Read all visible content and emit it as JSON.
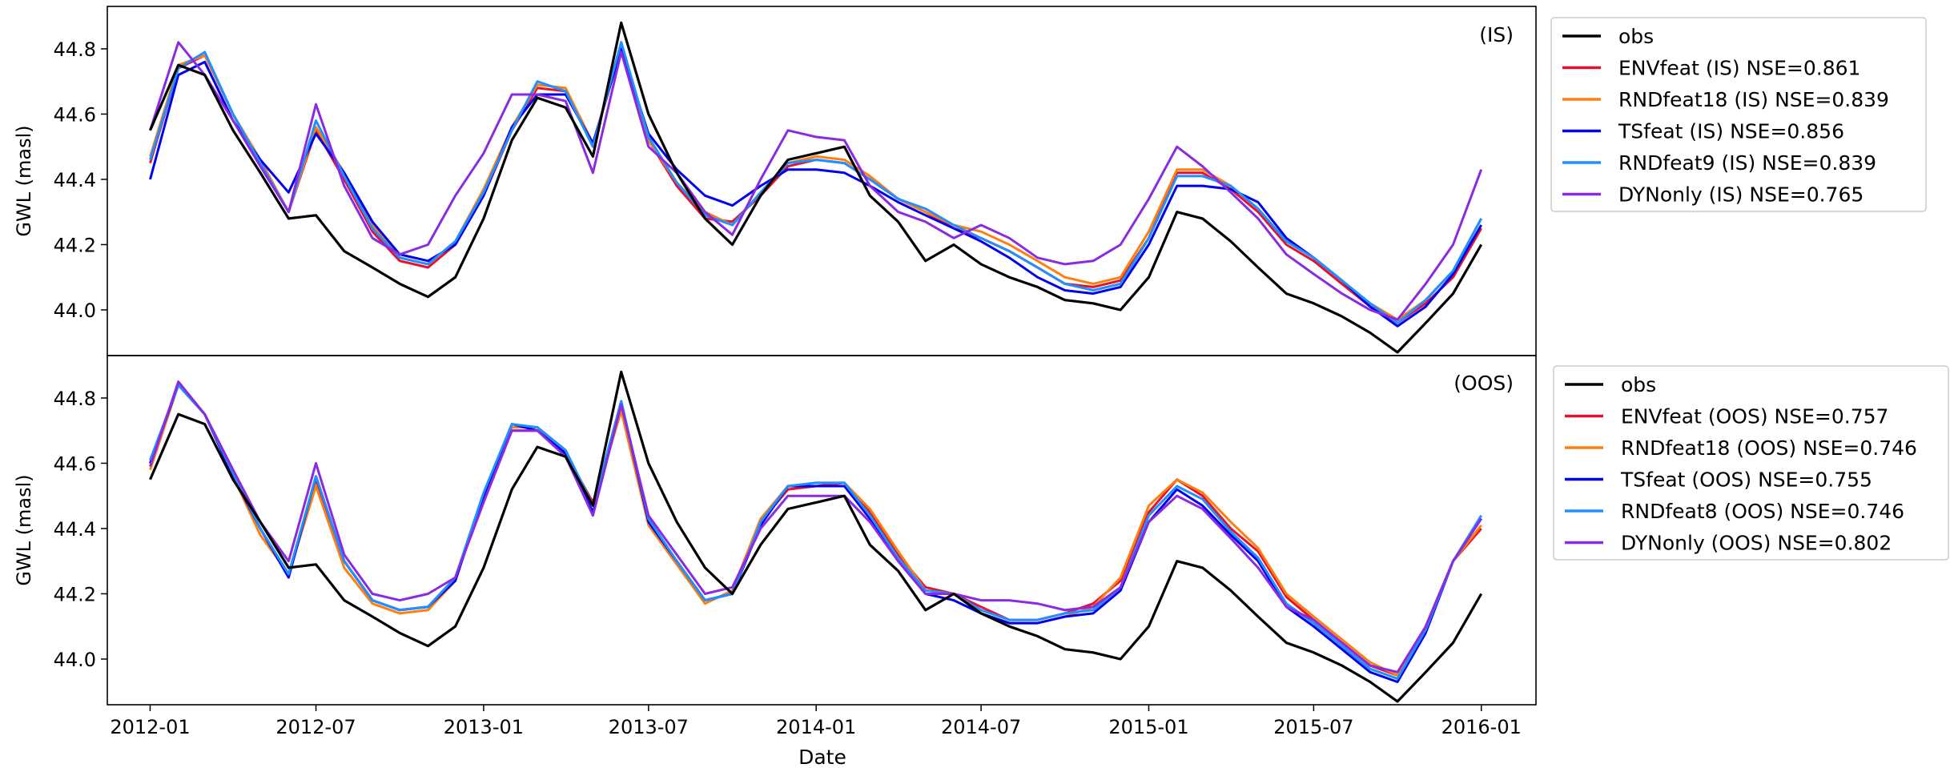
{
  "colors": {
    "obs": "#000000",
    "env": "#e8112d",
    "rnd": "#ff7f0e",
    "ts": "#0000ee",
    "rnd2": "#1e90ff",
    "dyn": "#8a2be2"
  },
  "figure": {
    "xlabel": "Date",
    "ylabel": "GWL (masl)",
    "x_ticks": [
      "2012-01",
      "2012-07",
      "2013-01",
      "2013-07",
      "2014-01",
      "2014-07",
      "2015-01",
      "2015-07",
      "2016-01"
    ],
    "y_ticks": [
      "44.0",
      "44.2",
      "44.4",
      "44.6",
      "44.8"
    ],
    "xlim": [
      "2011-11-15",
      "2016-03-01"
    ],
    "ylim": [
      43.86,
      44.93
    ]
  },
  "chart_data": [
    {
      "type": "line",
      "panel_label": "(IS)",
      "xlabel": "",
      "ylabel": "GWL (masl)",
      "legend_position": "outside-right",
      "grid": false,
      "x": [
        "2012-01",
        "2012-02",
        "2012-03",
        "2012-04",
        "2012-05",
        "2012-06",
        "2012-07",
        "2012-08",
        "2012-09",
        "2012-10",
        "2012-11",
        "2012-12",
        "2013-01",
        "2013-02",
        "2013-03",
        "2013-04",
        "2013-05",
        "2013-06",
        "2013-07",
        "2013-08",
        "2013-09",
        "2013-10",
        "2013-11",
        "2013-12",
        "2014-01",
        "2014-02",
        "2014-03",
        "2014-04",
        "2014-05",
        "2014-06",
        "2014-07",
        "2014-08",
        "2014-09",
        "2014-10",
        "2014-11",
        "2014-12",
        "2015-01",
        "2015-02",
        "2015-03",
        "2015-04",
        "2015-05",
        "2015-06",
        "2015-07",
        "2015-08",
        "2015-09",
        "2015-10",
        "2015-11",
        "2015-12",
        "2016-01"
      ],
      "series": [
        {
          "name": "obs",
          "legend": "obs",
          "color_key": "obs",
          "values": [
            44.55,
            44.75,
            44.72,
            44.55,
            44.42,
            44.28,
            44.29,
            44.18,
            44.13,
            44.08,
            44.04,
            44.1,
            44.28,
            44.52,
            44.65,
            44.62,
            44.47,
            44.88,
            44.6,
            44.42,
            44.28,
            44.2,
            44.35,
            44.46,
            44.48,
            44.5,
            44.35,
            44.27,
            44.15,
            44.2,
            44.14,
            44.1,
            44.07,
            44.03,
            44.02,
            44.0,
            44.1,
            44.3,
            44.28,
            44.21,
            44.13,
            44.05,
            44.02,
            43.98,
            43.93,
            43.87,
            43.96,
            44.05,
            44.2
          ]
        },
        {
          "name": "ENVfeat (IS)",
          "legend": "ENVfeat (IS) NSE=0.861",
          "color_key": "env",
          "values": [
            44.45,
            44.74,
            44.78,
            44.6,
            44.45,
            44.3,
            44.55,
            44.4,
            44.24,
            44.15,
            44.13,
            44.2,
            44.35,
            44.55,
            44.68,
            44.67,
            44.5,
            44.82,
            44.52,
            44.38,
            44.28,
            44.27,
            44.35,
            44.44,
            44.46,
            44.45,
            44.4,
            44.34,
            44.3,
            44.25,
            44.22,
            44.18,
            44.13,
            44.08,
            44.07,
            44.09,
            44.22,
            44.42,
            44.42,
            44.37,
            44.3,
            44.2,
            44.15,
            44.08,
            44.01,
            43.96,
            44.02,
            44.1,
            44.25
          ]
        },
        {
          "name": "RNDfeat18 (IS)",
          "legend": "RNDfeat18 (IS) NSE=0.839",
          "color_key": "rnd",
          "values": [
            44.47,
            44.75,
            44.78,
            44.6,
            44.46,
            44.3,
            44.56,
            44.42,
            44.26,
            44.16,
            44.14,
            44.21,
            44.37,
            44.56,
            44.69,
            44.68,
            44.51,
            44.8,
            44.52,
            44.39,
            44.3,
            44.26,
            44.36,
            44.45,
            44.47,
            44.46,
            44.41,
            44.34,
            44.3,
            44.26,
            44.24,
            44.2,
            44.15,
            44.1,
            44.08,
            44.1,
            44.24,
            44.43,
            44.43,
            44.38,
            44.31,
            44.21,
            44.16,
            44.09,
            44.02,
            43.97,
            44.03,
            44.12,
            44.28
          ]
        },
        {
          "name": "TSfeat (IS)",
          "legend": "TSfeat (IS)   NSE=0.856",
          "color_key": "ts",
          "values": [
            44.4,
            44.72,
            44.76,
            44.58,
            44.46,
            44.36,
            44.54,
            44.42,
            44.27,
            44.17,
            44.15,
            44.2,
            44.35,
            44.56,
            44.66,
            44.66,
            44.51,
            44.8,
            44.54,
            44.43,
            44.35,
            44.32,
            44.38,
            44.43,
            44.43,
            44.42,
            44.38,
            44.33,
            44.29,
            44.25,
            44.21,
            44.16,
            44.1,
            44.06,
            44.05,
            44.07,
            44.2,
            44.38,
            44.38,
            44.37,
            44.33,
            44.22,
            44.16,
            44.09,
            44.01,
            43.95,
            44.01,
            44.11,
            44.26
          ]
        },
        {
          "name": "RNDfeat9 (IS)",
          "legend": "RNDfeat9 (IS) NSE=0.839",
          "color_key": "rnd2",
          "values": [
            44.46,
            44.74,
            44.79,
            44.6,
            44.45,
            44.3,
            44.58,
            44.41,
            44.25,
            44.16,
            44.14,
            44.21,
            44.36,
            44.55,
            44.7,
            44.67,
            44.5,
            44.82,
            44.53,
            44.39,
            44.29,
            44.26,
            44.36,
            44.45,
            44.46,
            44.45,
            44.4,
            44.34,
            44.31,
            44.26,
            44.22,
            44.18,
            44.13,
            44.08,
            44.06,
            44.08,
            44.22,
            44.41,
            44.41,
            44.38,
            44.31,
            44.21,
            44.16,
            44.09,
            44.02,
            43.96,
            44.03,
            44.12,
            44.28
          ]
        },
        {
          "name": "DYNonly (IS)",
          "legend": "DYNonly (IS) NSE=0.765",
          "color_key": "dyn",
          "values": [
            44.55,
            44.82,
            44.72,
            44.58,
            44.44,
            44.3,
            44.63,
            44.38,
            44.22,
            44.17,
            44.2,
            44.35,
            44.48,
            44.66,
            44.66,
            44.64,
            44.42,
            44.79,
            44.5,
            44.42,
            44.3,
            44.23,
            44.4,
            44.55,
            44.53,
            44.52,
            44.38,
            44.3,
            44.27,
            44.22,
            44.26,
            44.22,
            44.16,
            44.14,
            44.15,
            44.2,
            44.34,
            44.5,
            44.44,
            44.36,
            44.28,
            44.17,
            44.11,
            44.05,
            44.0,
            43.97,
            44.08,
            44.2,
            44.43
          ]
        }
      ]
    },
    {
      "type": "line",
      "panel_label": "(OOS)",
      "xlabel": "Date",
      "ylabel": "GWL (masl)",
      "legend_position": "outside-right",
      "grid": false,
      "x": [
        "2012-01",
        "2012-02",
        "2012-03",
        "2012-04",
        "2012-05",
        "2012-06",
        "2012-07",
        "2012-08",
        "2012-09",
        "2012-10",
        "2012-11",
        "2012-12",
        "2013-01",
        "2013-02",
        "2013-03",
        "2013-04",
        "2013-05",
        "2013-06",
        "2013-07",
        "2013-08",
        "2013-09",
        "2013-10",
        "2013-11",
        "2013-12",
        "2014-01",
        "2014-02",
        "2014-03",
        "2014-04",
        "2014-05",
        "2014-06",
        "2014-07",
        "2014-08",
        "2014-09",
        "2014-10",
        "2014-11",
        "2014-12",
        "2015-01",
        "2015-02",
        "2015-03",
        "2015-04",
        "2015-05",
        "2015-06",
        "2015-07",
        "2015-08",
        "2015-09",
        "2015-10",
        "2015-11",
        "2015-12",
        "2016-01"
      ],
      "series": [
        {
          "name": "obs",
          "legend": "obs",
          "color_key": "obs",
          "values": [
            44.55,
            44.75,
            44.72,
            44.55,
            44.42,
            44.28,
            44.29,
            44.18,
            44.13,
            44.08,
            44.04,
            44.1,
            44.28,
            44.52,
            44.65,
            44.62,
            44.47,
            44.88,
            44.6,
            44.42,
            44.28,
            44.2,
            44.35,
            44.46,
            44.48,
            44.5,
            44.35,
            44.27,
            44.15,
            44.2,
            44.14,
            44.1,
            44.07,
            44.03,
            44.02,
            44.0,
            44.1,
            44.3,
            44.28,
            44.21,
            44.13,
            44.05,
            44.02,
            43.98,
            43.93,
            43.87,
            43.96,
            44.05,
            44.2
          ]
        },
        {
          "name": "ENVfeat (OOS)",
          "legend": "ENVfeat (OOS) NSE=0.757",
          "color_key": "env",
          "values": [
            44.6,
            44.84,
            44.75,
            44.57,
            44.4,
            44.26,
            44.55,
            44.3,
            44.18,
            44.15,
            44.16,
            44.25,
            44.5,
            44.7,
            44.7,
            44.63,
            44.48,
            44.77,
            44.42,
            44.3,
            44.18,
            44.2,
            44.42,
            44.52,
            44.53,
            44.54,
            44.45,
            44.32,
            44.22,
            44.2,
            44.16,
            44.12,
            44.12,
            44.14,
            44.17,
            44.24,
            44.45,
            44.55,
            44.5,
            44.4,
            44.33,
            44.19,
            44.12,
            44.05,
            43.98,
            43.95,
            44.1,
            44.3,
            44.4
          ]
        },
        {
          "name": "RNDfeat18 (OOS)",
          "legend": "RNDfeat18 (OOS) NSE=0.746",
          "color_key": "rnd",
          "values": [
            44.58,
            44.84,
            44.75,
            44.56,
            44.38,
            44.26,
            44.53,
            44.28,
            44.17,
            44.14,
            44.15,
            44.24,
            44.5,
            44.71,
            44.71,
            44.64,
            44.47,
            44.76,
            44.41,
            44.29,
            44.17,
            44.21,
            44.43,
            44.53,
            44.54,
            44.54,
            44.46,
            44.33,
            44.21,
            44.2,
            44.14,
            44.11,
            44.11,
            44.13,
            44.16,
            44.25,
            44.47,
            44.55,
            44.51,
            44.42,
            44.34,
            44.2,
            44.13,
            44.06,
            43.99,
            43.95,
            44.1,
            44.3,
            44.41
          ]
        },
        {
          "name": "TSfeat (OOS)",
          "legend": "TSfeat (OOS)   NSE=0.755",
          "color_key": "ts",
          "values": [
            44.6,
            44.84,
            44.75,
            44.56,
            44.4,
            44.25,
            44.56,
            44.3,
            44.18,
            44.15,
            44.16,
            44.24,
            44.5,
            44.72,
            44.7,
            44.63,
            44.45,
            44.79,
            44.42,
            44.3,
            44.18,
            44.2,
            44.41,
            44.53,
            44.53,
            44.53,
            44.43,
            44.3,
            44.2,
            44.18,
            44.14,
            44.11,
            44.11,
            44.13,
            44.14,
            44.21,
            44.42,
            44.52,
            44.47,
            44.38,
            44.3,
            44.16,
            44.1,
            44.03,
            43.96,
            43.93,
            44.08,
            44.3,
            44.43
          ]
        },
        {
          "name": "RNDfeat8 (OOS)",
          "legend": "RNDfeat8 (OOS) NSE=0.746",
          "color_key": "rnd2",
          "values": [
            44.61,
            44.84,
            44.75,
            44.57,
            44.4,
            44.26,
            44.56,
            44.3,
            44.18,
            44.15,
            44.16,
            44.25,
            44.51,
            44.72,
            44.71,
            44.64,
            44.47,
            44.79,
            44.43,
            44.3,
            44.18,
            44.2,
            44.42,
            44.53,
            44.54,
            44.54,
            44.44,
            44.31,
            44.21,
            44.2,
            44.15,
            44.12,
            44.12,
            44.14,
            44.15,
            44.22,
            44.44,
            44.53,
            44.49,
            44.39,
            44.31,
            44.17,
            44.11,
            44.04,
            43.97,
            43.94,
            44.09,
            44.3,
            44.44
          ]
        },
        {
          "name": "DYNonly (OOS)",
          "legend": "DYNonly (OOS) NSE=0.802",
          "color_key": "dyn",
          "values": [
            44.59,
            44.85,
            44.75,
            44.58,
            44.42,
            44.3,
            44.6,
            44.32,
            44.2,
            44.18,
            44.2,
            44.25,
            44.48,
            44.7,
            44.7,
            44.62,
            44.44,
            44.78,
            44.44,
            44.32,
            44.2,
            44.22,
            44.4,
            44.5,
            44.5,
            44.5,
            44.42,
            44.3,
            44.2,
            44.2,
            44.18,
            44.18,
            44.17,
            44.15,
            44.16,
            44.22,
            44.42,
            44.5,
            44.46,
            44.37,
            44.28,
            44.16,
            44.12,
            44.05,
            43.98,
            43.96,
            44.1,
            44.3,
            44.43
          ]
        }
      ]
    }
  ]
}
